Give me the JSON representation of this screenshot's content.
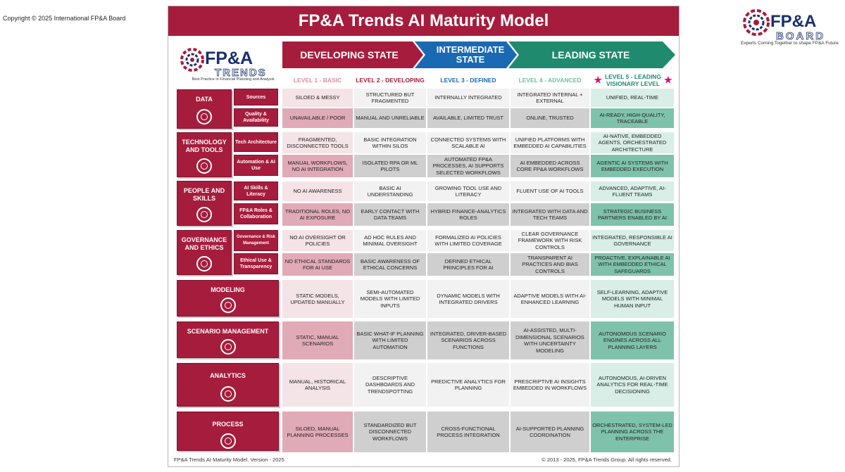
{
  "copyright": "Copyright © 2025 International FP&A Board",
  "board_logo": {
    "line1": "FP&A",
    "line2": "BOARD",
    "tagline": "Experts Coming Together to shape FP&A Future"
  },
  "trends_logo": {
    "line1": "FP&A",
    "line2": "TRENDS",
    "tagline": "Best Practice in Financial Planning and Analysis"
  },
  "title": "FP&A Trends AI Maturity Model",
  "states": [
    {
      "label": "DEVELOPING STATE",
      "color": "#a61c3c"
    },
    {
      "label": "INTERMEDIATE STATE",
      "color": "#1a69b3"
    },
    {
      "label": "LEADING STATE",
      "color": "#1f8a6d"
    }
  ],
  "levels": [
    {
      "label": "LEVEL 1 - BASIC",
      "color": "#d98d9e"
    },
    {
      "label": "LEVEL 2 - DEVELOPING",
      "color": "#a61c3c"
    },
    {
      "label": "LEVEL 3 - DEFINED",
      "color": "#1a69b3"
    },
    {
      "label": "LEVEL 4 - ADVANCED",
      "color": "#6fbfa3"
    },
    {
      "label": "LEVEL 5 - LEADING VISIONARY LEVEL",
      "color": "#1f8a6d",
      "star": "★"
    }
  ],
  "categories": [
    {
      "label": "DATA",
      "icon": "data-icon"
    },
    {
      "label": "TECHNOLOGY AND TOOLS",
      "icon": "gears-icon"
    },
    {
      "label": "PEOPLE AND SKILLS",
      "icon": "people-icon"
    },
    {
      "label": "GOVERNANCE AND ETHICS",
      "icon": "governance-icon"
    },
    {
      "label": "MODELING",
      "icon": "modeling-icon"
    },
    {
      "label": "SCENARIO MANAGEMENT",
      "icon": "scenario-icon"
    },
    {
      "label": "ANALYTICS",
      "icon": "analytics-icon"
    },
    {
      "label": "PROCESS",
      "icon": "process-icon"
    }
  ],
  "rows": [
    {
      "sub": "Sources",
      "cells": [
        "SILOED & MESSY",
        "STRUCTURED BUT FRAGMENTED",
        "INTERNALLY INTEGRATED",
        "INTEGRATED INTERNAL + EXTERNAL",
        "UNIFIED, REAL-TIME"
      ]
    },
    {
      "sub": "Quality & Availability",
      "cells": [
        "UNAVAILABLE / POOR",
        "MANUAL AND UNRELIABLE",
        "AVAILABLE, LIMITED TRUST",
        "ONLINE, TRUSTED",
        "AI-READY, HIGH-QUALITY, TRACEABLE"
      ]
    },
    {
      "sub": "Tech Architecture",
      "cells": [
        "FRAGMENTED, DISCONNECTED TOOLS",
        "BASIC INTEGRATION WITHIN SILOS",
        "CONNECTED SYSTEMS WITH SCALABLE AI",
        "UNIFIED PLATFORMS WITH EMBEDDED AI CAPABILITIES",
        "AI-NATIVE, EMBEDDED AGENTS, ORCHESTRATED ARCHITECTURE"
      ]
    },
    {
      "sub": "Automation & AI Use",
      "cells": [
        "MANUAL WORKFLOWS, NO AI INTEGRATION",
        "ISOLATED RPA OR ML PILOTS",
        "AUTOMATED FP&A PROCESSES, AI SUPPORTS SELECTED WORKFLOWS",
        "AI EMBEDDED ACROSS CORE FP&A WORKFLOWS",
        "AGENTIC AI SYSTEMS WITH EMBEDDED EXECUTION"
      ]
    },
    {
      "sub": "AI Skills & Literacy",
      "cells": [
        "NO AI AWARENESS",
        "BASIC AI UNDERSTANDING",
        "GROWING TOOL USE AND LITERACY",
        "FLUENT USE OF AI TOOLS",
        "ADVANCED, ADAPTIVE, AI-FLUENT TEAMS"
      ]
    },
    {
      "sub": "FP&A Roles & Collaboration",
      "cells": [
        "TRADITIONAL ROLES, NO AI EXPOSURE",
        "EARLY CONTACT WITH DATA TEAMS",
        "HYBRID FINANCE-ANALYTICS ROLES",
        "INTEGRATED WITH DATA AND TECH TEAMS",
        "STRATEGIC BUSINESS PARTNERS ENABLED BY AI"
      ]
    },
    {
      "sub": "Governance & Risk Management",
      "cells": [
        "NO AI OVERSIGHT OR POLICIES",
        "AD HOC RULES AND MINIMAL OVERSIGHT",
        "FORMALIZED AI POLICIES WITH LIMITED COVERAGE",
        "CLEAR GOVERNANCE FRAMEWORK WITH RISK CONTROLS",
        "INTEGRATED, RESPONSIBLE AI GOVERNANCE"
      ]
    },
    {
      "sub": "Ethical Use & Transparency",
      "cells": [
        "NO ETHICAL STANDARDS FOR AI USE",
        "BASIC AWARENESS OF ETHICAL CONCERNS",
        "DEFINED ETHICAL PRINCIPLES FOR AI",
        "TRANSPARENT AI PRACTICES AND BIAS CONTROLS",
        "PROACTIVE, EXPLAINABLE AI WITH EMBEDDED ETHICAL SAFEGUARDS"
      ]
    },
    {
      "cells": [
        "STATIC MODELS, UPDATED MANUALLY",
        "SEMI-AUTOMATED MODELS WITH LIMITED INPUTS",
        "DYNAMIC MODELS WITH INTEGRATED DRIVERS",
        "ADAPTIVE MODELS WITH AI-ENHANCED LEARNING",
        "SELF-LEARNING, ADAPTIVE MODELS WITH MINIMAL HUMAN INPUT"
      ]
    },
    {
      "cells": [
        "STATIC, MANUAL SCENARIOS",
        "BASIC WHAT-IF PLANNING WITH LIMITED AUTOMATION",
        "INTEGRATED, DRIVER-BASED SCENARIOS ACROSS FUNCTIONS",
        "AI-ASSISTED, MULTI-DIMENSIONAL SCENARIOS WITH UNCERTAINTY MODELING",
        "AUTONOMOUS SCENARIO ENGINES ACROSS ALL PLANNING LAYERS"
      ]
    },
    {
      "cells": [
        "MANUAL, HISTORICAL ANALYSIS",
        "DESCRIPTIVE DASHBOARDS AND TRENDSPOTTING",
        "PREDICTIVE ANALYTICS FOR PLANNING",
        "PRESCRIPTIVE AI INSIGHTS EMBEDDED IN WORKFLOWS",
        "AUTONOMOUS, AI-DRIVEN ANALYTICS FOR REAL-TIME DECISIONING"
      ]
    },
    {
      "cells": [
        "SILOED, MANUAL PLANNING PROCESSES",
        "STANDARDIZED BUT DISCONNECTED WORKFLOWS",
        "CROSS-FUNCTIONAL PROCESS INTEGRATION",
        "AI-SUPPORTED PLANNING COORDINATION",
        "ORCHESTRATED, SYSTEM-LED PLANNING ACROSS THE ENTERPRISE"
      ]
    }
  ],
  "footer": {
    "left": "FP&A Trends AI Maturity Model, Version - 2025",
    "right": "© 2013 - 2025, FP&A Trends Group. All rights reserved."
  }
}
